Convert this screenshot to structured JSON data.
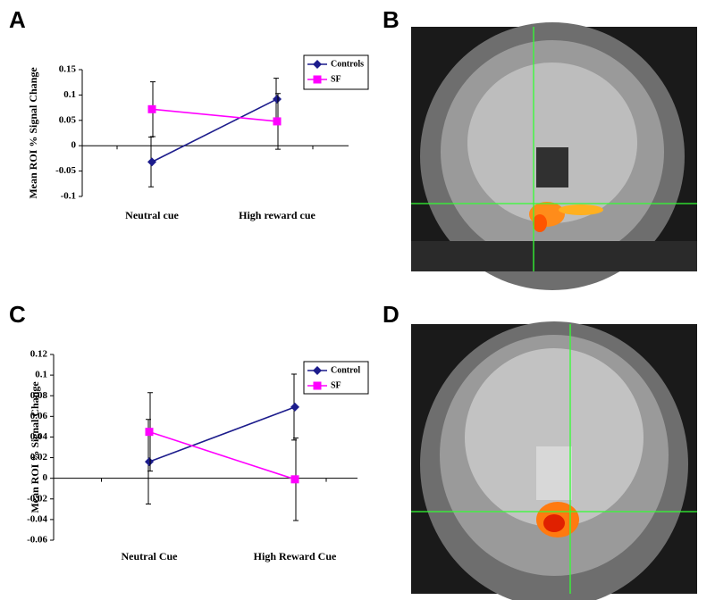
{
  "panel_labels": [
    "A",
    "B",
    "C",
    "D"
  ],
  "chart_data": [
    {
      "type": "line",
      "ylabel": "Mean ROI % Signal Change",
      "categories": [
        "Neutral cue",
        "High reward cue"
      ],
      "ylim": [
        -0.1,
        0.15
      ],
      "yticks": [
        -0.1,
        -0.05,
        0,
        0.05,
        0.1,
        0.15
      ],
      "series": [
        {
          "name": "Controls",
          "color": "#1c1c8c",
          "marker": "diamond",
          "values": [
            -0.032,
            0.092
          ],
          "errors": [
            0.049,
            0.041
          ]
        },
        {
          "name": "SF",
          "color": "#ff00ff",
          "marker": "square",
          "values": [
            0.072,
            0.048
          ],
          "errors": [
            0.054,
            0.055
          ]
        }
      ]
    },
    {
      "type": "line",
      "ylabel": "Mean ROI % Signal Change",
      "categories": [
        "Neutral Cue",
        "High Reward Cue"
      ],
      "ylim": [
        -0.06,
        0.12
      ],
      "yticks": [
        -0.06,
        -0.04,
        -0.02,
        0,
        0.02,
        0.04,
        0.06,
        0.08,
        0.1,
        0.12
      ],
      "series": [
        {
          "name": "Control",
          "color": "#1c1c8c",
          "marker": "diamond",
          "values": [
            0.016,
            0.069
          ],
          "errors": [
            0.041,
            0.032
          ]
        },
        {
          "name": "SF",
          "color": "#ff00ff",
          "marker": "square",
          "values": [
            0.045,
            -0.001
          ],
          "errors": [
            0.038,
            0.04
          ]
        }
      ]
    }
  ]
}
